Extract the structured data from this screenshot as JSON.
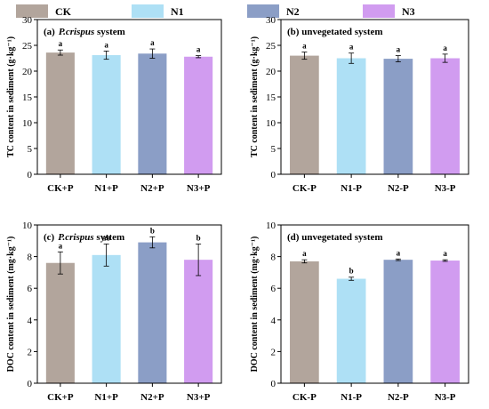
{
  "legend": [
    {
      "label": "CK",
      "color": "#b2a59c"
    },
    {
      "label": "N1",
      "color": "#aee0f5"
    },
    {
      "label": "N2",
      "color": "#8b9ec6"
    },
    {
      "label": "N3",
      "color": "#d19cf0"
    }
  ],
  "chart_data": [
    {
      "type": "bar",
      "title_prefix": "(a)",
      "title_text": "P.crispus",
      "title_suffix": " system",
      "ylabel": "TC content in sediment (g·kg⁻¹)",
      "ylim": [
        0,
        30
      ],
      "yticks": [
        0,
        5,
        10,
        15,
        20,
        25,
        30
      ],
      "categories": [
        "CK+P",
        "N1+P",
        "N2+P",
        "N3+P"
      ],
      "values": [
        23.6,
        23.1,
        23.4,
        22.8
      ],
      "errors": [
        0.5,
        0.8,
        0.9,
        0.2
      ],
      "labels": [
        "a",
        "a",
        "a",
        "a"
      ]
    },
    {
      "type": "bar",
      "title_prefix": "(b)",
      "title_text": "",
      "title_suffix": " unvegetated system",
      "ylabel": "TC content in sediment (g·kg⁻¹)",
      "ylim": [
        0,
        30
      ],
      "yticks": [
        0,
        5,
        10,
        15,
        20,
        25,
        30
      ],
      "categories": [
        "CK-P",
        "N1-P",
        "N2-P",
        "N3-P"
      ],
      "values": [
        23.0,
        22.5,
        22.4,
        22.5
      ],
      "errors": [
        0.7,
        1.0,
        0.6,
        0.8
      ],
      "labels": [
        "a",
        "a",
        "a",
        "a"
      ]
    },
    {
      "type": "bar",
      "title_prefix": "(c)",
      "title_text": "P.crispus",
      "title_suffix": " system",
      "ylabel": "DOC content in sediment (mg·kg⁻¹)",
      "ylim": [
        0,
        10
      ],
      "yticks": [
        0,
        2,
        4,
        6,
        8,
        10
      ],
      "categories": [
        "CK+P",
        "N1+P",
        "N2+P",
        "N3+P"
      ],
      "values": [
        7.6,
        8.1,
        8.9,
        7.8
      ],
      "errors": [
        0.7,
        0.7,
        0.35,
        1.0
      ],
      "labels": [
        "a",
        "ab",
        "b",
        "b"
      ]
    },
    {
      "type": "bar",
      "title_prefix": "(d)",
      "title_text": "",
      "title_suffix": " unvegetated system",
      "ylabel": "DOC content in sediment (mg·kg⁻¹)",
      "ylim": [
        0,
        10
      ],
      "yticks": [
        0,
        2,
        4,
        6,
        8,
        10
      ],
      "categories": [
        "CK-P",
        "N1-P",
        "N2-P",
        "N3-P"
      ],
      "values": [
        7.7,
        6.6,
        7.8,
        7.75
      ],
      "errors": [
        0.1,
        0.1,
        0.05,
        0.05
      ],
      "labels": [
        "a",
        "b",
        "a",
        "a"
      ]
    }
  ]
}
